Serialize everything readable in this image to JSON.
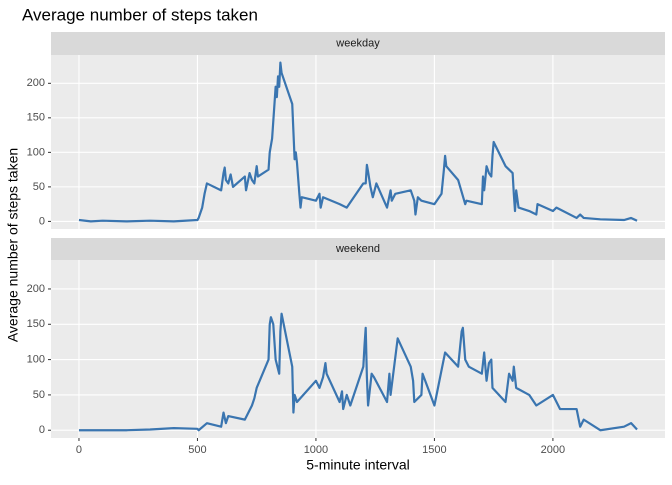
{
  "chart_data": {
    "type": "line",
    "title": "Average number of steps taken",
    "xlabel": "5-minute interval",
    "ylabel": "Average number of steps taken",
    "color": "#3a75b0",
    "grid": true,
    "xlim": [
      -118,
      2473
    ],
    "xticks": [
      0,
      500,
      1000,
      1500,
      2000
    ],
    "ylim": [
      -11,
      241
    ],
    "yticks": [
      0,
      50,
      100,
      150,
      200
    ],
    "facets": [
      {
        "name": "weekday",
        "x": [
          0,
          50,
          100,
          200,
          300,
          400,
          500,
          505,
          520,
          530,
          540,
          600,
          610,
          615,
          620,
          630,
          640,
          650,
          700,
          705,
          720,
          730,
          740,
          750,
          755,
          800,
          805,
          815,
          830,
          835,
          840,
          845,
          850,
          855,
          900,
          905,
          910,
          915,
          920,
          930,
          935,
          940,
          1000,
          1015,
          1020,
          1030,
          1100,
          1130,
          1140,
          1200,
          1210,
          1215,
          1220,
          1230,
          1240,
          1255,
          1300,
          1315,
          1320,
          1335,
          1400,
          1415,
          1420,
          1430,
          1445,
          1500,
          1530,
          1540,
          1545,
          1550,
          1600,
          1630,
          1635,
          1700,
          1705,
          1710,
          1720,
          1730,
          1740,
          1745,
          1750,
          1800,
          1830,
          1835,
          1840,
          1845,
          1855,
          1900,
          1930,
          1935,
          2000,
          2015,
          2100,
          2115,
          2130,
          2200,
          2300,
          2330,
          2355
        ],
        "values": [
          2,
          0,
          1,
          0,
          1,
          0,
          2,
          5,
          20,
          40,
          55,
          45,
          70,
          78,
          60,
          55,
          68,
          50,
          65,
          45,
          70,
          60,
          55,
          80,
          65,
          75,
          100,
          120,
          195,
          180,
          210,
          195,
          230,
          215,
          170,
          130,
          90,
          100,
          85,
          40,
          20,
          35,
          30,
          40,
          20,
          35,
          25,
          20,
          25,
          55,
          55,
          82,
          72,
          50,
          35,
          55,
          20,
          45,
          30,
          40,
          45,
          30,
          10,
          35,
          30,
          25,
          40,
          75,
          95,
          80,
          60,
          25,
          30,
          25,
          65,
          45,
          80,
          70,
          65,
          95,
          115,
          80,
          70,
          40,
          15,
          45,
          20,
          15,
          10,
          25,
          15,
          20,
          5,
          10,
          5,
          3,
          2,
          5,
          1
        ]
      },
      {
        "name": "weekend",
        "x": [
          0,
          100,
          200,
          300,
          400,
          500,
          505,
          540,
          600,
          610,
          620,
          630,
          700,
          730,
          740,
          750,
          800,
          805,
          810,
          820,
          830,
          845,
          850,
          855,
          900,
          905,
          910,
          920,
          1000,
          1015,
          1030,
          1040,
          1045,
          1100,
          1110,
          1115,
          1130,
          1145,
          1200,
          1205,
          1210,
          1215,
          1220,
          1235,
          1245,
          1300,
          1310,
          1315,
          1345,
          1400,
          1410,
          1415,
          1445,
          1450,
          1500,
          1515,
          1530,
          1545,
          1600,
          1615,
          1620,
          1630,
          1645,
          1700,
          1710,
          1720,
          1730,
          1740,
          1745,
          1800,
          1815,
          1830,
          1835,
          1845,
          1900,
          1930,
          2000,
          2030,
          2100,
          2115,
          2130,
          2200,
          2300,
          2330,
          2355
        ],
        "values": [
          0,
          0,
          0,
          1,
          3,
          2,
          0,
          10,
          5,
          25,
          10,
          20,
          15,
          35,
          45,
          60,
          100,
          150,
          160,
          150,
          100,
          80,
          140,
          165,
          90,
          25,
          50,
          40,
          70,
          60,
          75,
          95,
          80,
          40,
          55,
          30,
          50,
          35,
          90,
          120,
          145,
          75,
          35,
          80,
          75,
          40,
          80,
          50,
          130,
          90,
          70,
          40,
          50,
          80,
          35,
          60,
          85,
          110,
          90,
          140,
          145,
          100,
          90,
          80,
          110,
          70,
          95,
          100,
          60,
          40,
          80,
          70,
          90,
          60,
          50,
          35,
          50,
          30,
          30,
          5,
          15,
          0,
          5,
          10,
          1
        ]
      }
    ]
  }
}
